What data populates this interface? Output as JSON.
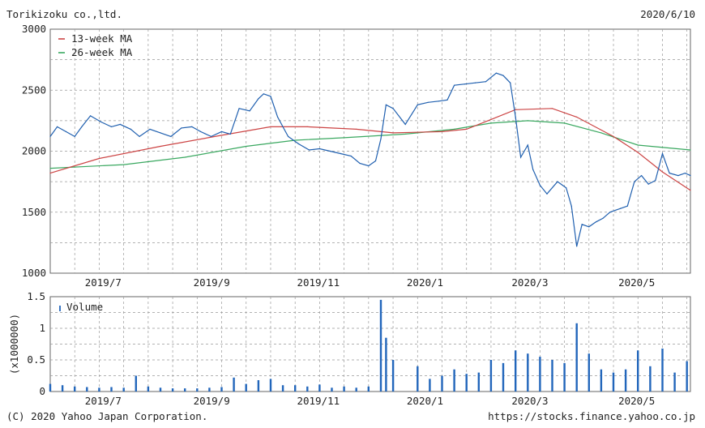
{
  "header": {
    "company": "Torikizoku co.,ltd.",
    "date": "2020/6/10"
  },
  "footer": {
    "copyright": "(C) 2020 Yahoo Japan Corporation.",
    "url": "https://stocks.finance.yahoo.co.jp"
  },
  "colors": {
    "price": "#1f5faf",
    "ma13": "#cc4444",
    "ma26": "#3aa860",
    "volume": "#2266bb",
    "grid": "#999999"
  },
  "chart_data": [
    {
      "type": "line",
      "title": "",
      "ylim": [
        1000,
        3000
      ],
      "yticks": [
        1000,
        1500,
        2000,
        2500,
        3000
      ],
      "xlim": [
        "2019-06-10",
        "2020-06-10"
      ],
      "xticks": [
        {
          "label": "2019/7",
          "date": "2019-07-01"
        },
        {
          "label": "2019/9",
          "date": "2019-09-01"
        },
        {
          "label": "2019/11",
          "date": "2019-11-01"
        },
        {
          "label": "2020/1",
          "date": "2020-01-01"
        },
        {
          "label": "2020/3",
          "date": "2020-03-01"
        },
        {
          "label": "2020/5",
          "date": "2020-05-01"
        }
      ],
      "grid": true,
      "legend_position": "top-left",
      "series": [
        {
          "name": "",
          "color_key": "price",
          "points": [
            [
              "2019-06-10",
              2120
            ],
            [
              "2019-06-14",
              2200
            ],
            [
              "2019-06-19",
              2160
            ],
            [
              "2019-06-24",
              2120
            ],
            [
              "2019-06-28",
              2200
            ],
            [
              "2019-07-03",
              2290
            ],
            [
              "2019-07-09",
              2240
            ],
            [
              "2019-07-15",
              2200
            ],
            [
              "2019-07-20",
              2220
            ],
            [
              "2019-07-26",
              2180
            ],
            [
              "2019-07-31",
              2120
            ],
            [
              "2019-08-06",
              2180
            ],
            [
              "2019-08-12",
              2150
            ],
            [
              "2019-08-18",
              2120
            ],
            [
              "2019-08-24",
              2190
            ],
            [
              "2019-08-30",
              2200
            ],
            [
              "2019-09-04",
              2160
            ],
            [
              "2019-09-10",
              2120
            ],
            [
              "2019-09-16",
              2160
            ],
            [
              "2019-09-21",
              2140
            ],
            [
              "2019-09-26",
              2350
            ],
            [
              "2019-10-02",
              2330
            ],
            [
              "2019-10-07",
              2430
            ],
            [
              "2019-10-10",
              2470
            ],
            [
              "2019-10-14",
              2450
            ],
            [
              "2019-10-18",
              2280
            ],
            [
              "2019-10-24",
              2120
            ],
            [
              "2019-10-30",
              2060
            ],
            [
              "2019-11-05",
              2010
            ],
            [
              "2019-11-11",
              2020
            ],
            [
              "2019-11-17",
              2000
            ],
            [
              "2019-11-23",
              1980
            ],
            [
              "2019-11-29",
              1960
            ],
            [
              "2019-12-04",
              1900
            ],
            [
              "2019-12-09",
              1880
            ],
            [
              "2019-12-13",
              1920
            ],
            [
              "2019-12-16",
              2100
            ],
            [
              "2019-12-19",
              2380
            ],
            [
              "2019-12-23",
              2350
            ],
            [
              "2019-12-30",
              2220
            ],
            [
              "2020-01-06",
              2380
            ],
            [
              "2020-01-12",
              2400
            ],
            [
              "2020-01-18",
              2410
            ],
            [
              "2020-01-23",
              2420
            ],
            [
              "2020-01-27",
              2540
            ],
            [
              "2020-02-02",
              2550
            ],
            [
              "2020-02-08",
              2560
            ],
            [
              "2020-02-14",
              2570
            ],
            [
              "2020-02-20",
              2640
            ],
            [
              "2020-02-24",
              2620
            ],
            [
              "2020-02-28",
              2560
            ],
            [
              "2020-03-02",
              2280
            ],
            [
              "2020-03-05",
              1950
            ],
            [
              "2020-03-09",
              2050
            ],
            [
              "2020-03-12",
              1850
            ],
            [
              "2020-03-16",
              1720
            ],
            [
              "2020-03-20",
              1650
            ],
            [
              "2020-03-26",
              1750
            ],
            [
              "2020-03-31",
              1700
            ],
            [
              "2020-04-03",
              1550
            ],
            [
              "2020-04-06",
              1220
            ],
            [
              "2020-04-09",
              1400
            ],
            [
              "2020-04-13",
              1380
            ],
            [
              "2020-04-17",
              1420
            ],
            [
              "2020-04-21",
              1450
            ],
            [
              "2020-04-25",
              1500
            ],
            [
              "2020-05-01",
              1530
            ],
            [
              "2020-05-05",
              1550
            ],
            [
              "2020-05-09",
              1750
            ],
            [
              "2020-05-13",
              1800
            ],
            [
              "2020-05-17",
              1730
            ],
            [
              "2020-05-21",
              1760
            ],
            [
              "2020-05-25",
              1980
            ],
            [
              "2020-05-29",
              1820
            ],
            [
              "2020-06-03",
              1800
            ],
            [
              "2020-06-07",
              1820
            ],
            [
              "2020-06-10",
              1800
            ]
          ]
        },
        {
          "name": "13-week MA",
          "color_key": "ma13",
          "points": [
            [
              "2019-06-10",
              1820
            ],
            [
              "2019-07-08",
              1940
            ],
            [
              "2019-08-12",
              2040
            ],
            [
              "2019-09-16",
              2130
            ],
            [
              "2019-10-14",
              2200
            ],
            [
              "2019-11-04",
              2200
            ],
            [
              "2019-12-02",
              2180
            ],
            [
              "2019-12-23",
              2150
            ],
            [
              "2020-01-20",
              2160
            ],
            [
              "2020-02-03",
              2180
            ],
            [
              "2020-02-17",
              2260
            ],
            [
              "2020-03-02",
              2340
            ],
            [
              "2020-03-23",
              2350
            ],
            [
              "2020-04-06",
              2280
            ],
            [
              "2020-04-27",
              2120
            ],
            [
              "2020-05-11",
              1990
            ],
            [
              "2020-05-25",
              1830
            ],
            [
              "2020-06-10",
              1680
            ]
          ]
        },
        {
          "name": "26-week MA",
          "color_key": "ma26",
          "points": [
            [
              "2019-06-10",
              1860
            ],
            [
              "2019-07-22",
              1890
            ],
            [
              "2019-08-26",
              1950
            ],
            [
              "2019-09-30",
              2040
            ],
            [
              "2019-10-28",
              2090
            ],
            [
              "2019-11-25",
              2110
            ],
            [
              "2019-12-30",
              2140
            ],
            [
              "2020-01-27",
              2180
            ],
            [
              "2020-02-17",
              2230
            ],
            [
              "2020-03-09",
              2250
            ],
            [
              "2020-03-30",
              2230
            ],
            [
              "2020-04-20",
              2150
            ],
            [
              "2020-05-11",
              2050
            ],
            [
              "2020-06-10",
              2010
            ]
          ]
        }
      ]
    },
    {
      "type": "bar",
      "title": "",
      "ylabel": "(x1000000)",
      "ylim": [
        0,
        1.5
      ],
      "yticks": [
        "0",
        "0.5",
        "1",
        "1.5"
      ],
      "grid": true,
      "legend_position": "top-left",
      "series_name": "Volume",
      "bars": [
        [
          "2019-06-10",
          0.12
        ],
        [
          "2019-06-17",
          0.1
        ],
        [
          "2019-06-24",
          0.08
        ],
        [
          "2019-07-01",
          0.07
        ],
        [
          "2019-07-08",
          0.06
        ],
        [
          "2019-07-15",
          0.07
        ],
        [
          "2019-07-22",
          0.06
        ],
        [
          "2019-07-29",
          0.25
        ],
        [
          "2019-08-05",
          0.08
        ],
        [
          "2019-08-12",
          0.06
        ],
        [
          "2019-08-19",
          0.05
        ],
        [
          "2019-08-26",
          0.05
        ],
        [
          "2019-09-02",
          0.05
        ],
        [
          "2019-09-09",
          0.06
        ],
        [
          "2019-09-16",
          0.07
        ],
        [
          "2019-09-23",
          0.22
        ],
        [
          "2019-09-30",
          0.12
        ],
        [
          "2019-10-07",
          0.18
        ],
        [
          "2019-10-14",
          0.2
        ],
        [
          "2019-10-21",
          0.1
        ],
        [
          "2019-10-28",
          0.1
        ],
        [
          "2019-11-04",
          0.08
        ],
        [
          "2019-11-11",
          0.11
        ],
        [
          "2019-11-18",
          0.06
        ],
        [
          "2019-11-25",
          0.08
        ],
        [
          "2019-12-02",
          0.06
        ],
        [
          "2019-12-09",
          0.08
        ],
        [
          "2019-12-16",
          1.45
        ],
        [
          "2019-12-19",
          0.85
        ],
        [
          "2019-12-23",
          0.5
        ],
        [
          "2020-01-06",
          0.4
        ],
        [
          "2020-01-13",
          0.2
        ],
        [
          "2020-01-20",
          0.25
        ],
        [
          "2020-01-27",
          0.35
        ],
        [
          "2020-02-03",
          0.28
        ],
        [
          "2020-02-10",
          0.3
        ],
        [
          "2020-02-17",
          0.5
        ],
        [
          "2020-02-24",
          0.45
        ],
        [
          "2020-03-02",
          0.65
        ],
        [
          "2020-03-09",
          0.6
        ],
        [
          "2020-03-16",
          0.55
        ],
        [
          "2020-03-23",
          0.5
        ],
        [
          "2020-03-30",
          0.45
        ],
        [
          "2020-04-06",
          1.08
        ],
        [
          "2020-04-13",
          0.6
        ],
        [
          "2020-04-20",
          0.35
        ],
        [
          "2020-04-27",
          0.3
        ],
        [
          "2020-05-04",
          0.35
        ],
        [
          "2020-05-11",
          0.65
        ],
        [
          "2020-05-18",
          0.4
        ],
        [
          "2020-05-25",
          0.68
        ],
        [
          "2020-06-01",
          0.3
        ],
        [
          "2020-06-08",
          0.48
        ]
      ],
      "xticks": [
        {
          "label": "2019/7",
          "date": "2019-07-01"
        },
        {
          "label": "2019/9",
          "date": "2019-09-01"
        },
        {
          "label": "2019/11",
          "date": "2019-11-01"
        },
        {
          "label": "2020/1",
          "date": "2020-01-01"
        },
        {
          "label": "2020/3",
          "date": "2020-03-01"
        },
        {
          "label": "2020/5",
          "date": "2020-05-01"
        }
      ]
    }
  ]
}
